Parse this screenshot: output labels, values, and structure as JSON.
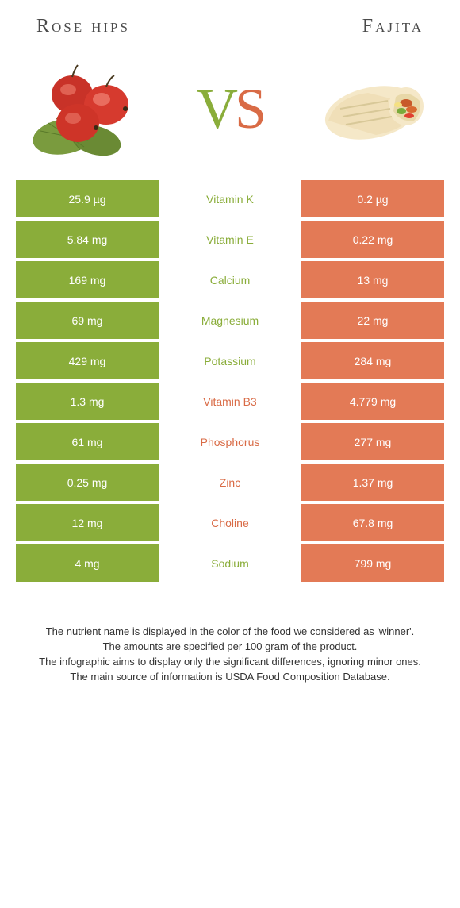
{
  "left_food": "Rose hips",
  "right_food": "Fajita",
  "vs_v": "V",
  "vs_s": "S",
  "colors": {
    "green": "#8aad3a",
    "orange": "#e37a56",
    "orange_text": "#d96b46",
    "text": "#333333",
    "bg": "#ffffff"
  },
  "rows": [
    {
      "left": "25.9 µg",
      "name": "Vitamin K",
      "right": "0.2 µg",
      "winner": "left"
    },
    {
      "left": "5.84 mg",
      "name": "Vitamin E",
      "right": "0.22 mg",
      "winner": "left"
    },
    {
      "left": "169 mg",
      "name": "Calcium",
      "right": "13 mg",
      "winner": "left"
    },
    {
      "left": "69 mg",
      "name": "Magnesium",
      "right": "22 mg",
      "winner": "left"
    },
    {
      "left": "429 mg",
      "name": "Potassium",
      "right": "284 mg",
      "winner": "left"
    },
    {
      "left": "1.3 mg",
      "name": "Vitamin B3",
      "right": "4.779 mg",
      "winner": "right"
    },
    {
      "left": "61 mg",
      "name": "Phosphorus",
      "right": "277 mg",
      "winner": "right"
    },
    {
      "left": "0.25 mg",
      "name": "Zinc",
      "right": "1.37 mg",
      "winner": "right"
    },
    {
      "left": "12 mg",
      "name": "Choline",
      "right": "67.8 mg",
      "winner": "right"
    },
    {
      "left": "4 mg",
      "name": "Sodium",
      "right": "799 mg",
      "winner": "left"
    }
  ],
  "footer_lines": [
    "The nutrient name is displayed in the color of the food we considered as 'winner'.",
    "The amounts are specified per 100 gram of the product.",
    "The infographic aims to display only the significant differences, ignoring minor ones.",
    "The main source of information is USDA Food Composition Database."
  ]
}
